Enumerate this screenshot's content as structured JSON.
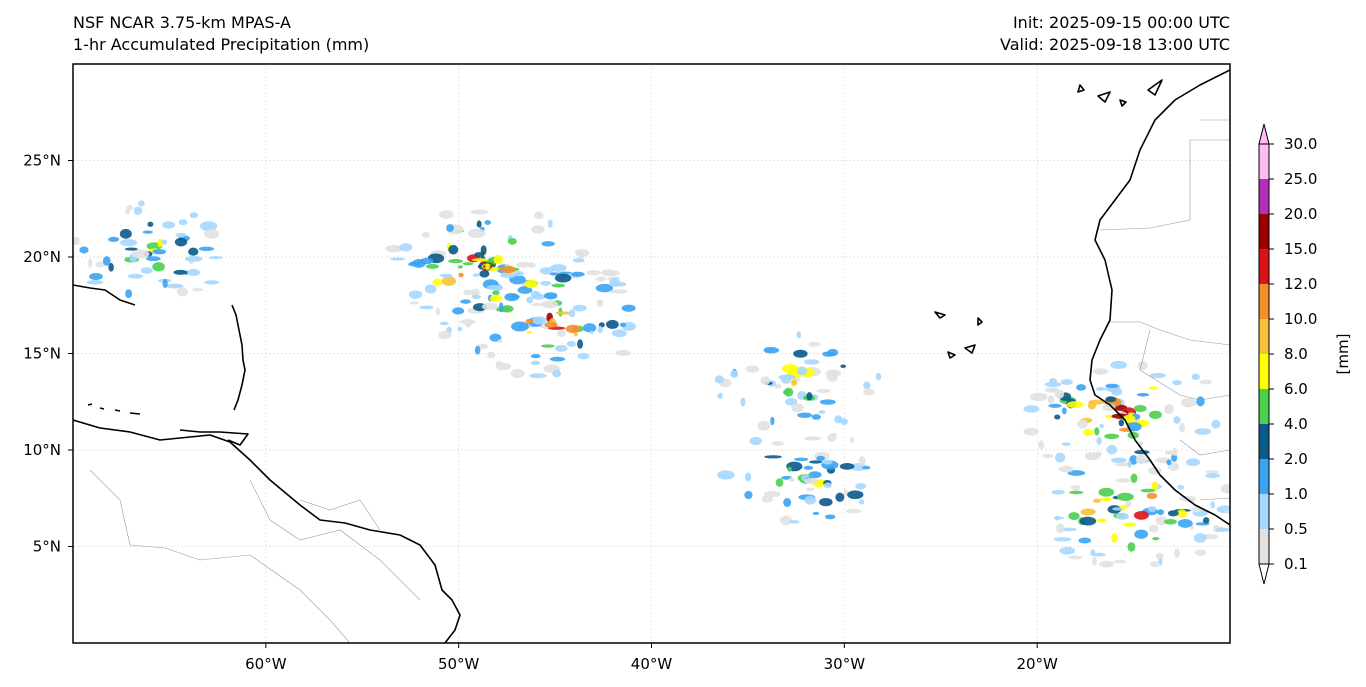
{
  "header": {
    "model": "NSF NCAR 3.75-km MPAS-A",
    "field": "1-hr Accumulated Precipitation (mm)",
    "init": "Init: 2025-09-15 00:00 UTC",
    "valid": "Valid: 2025-09-18 13:00 UTC"
  },
  "map": {
    "extent": {
      "lon_min": -70,
      "lon_max": -10,
      "lat_min": 0,
      "lat_max": 30
    },
    "gridlines": true,
    "x_ticks": [
      {
        "lon": -60,
        "label": "60°W"
      },
      {
        "lon": -50,
        "label": "50°W"
      },
      {
        "lon": -40,
        "label": "40°W"
      },
      {
        "lon": -30,
        "label": "30°W"
      },
      {
        "lon": -20,
        "label": "20°W"
      }
    ],
    "y_ticks": [
      {
        "lat": 25,
        "label": "25°N"
      },
      {
        "lat": 20,
        "label": "20°N"
      },
      {
        "lat": 15,
        "label": "15°N"
      },
      {
        "lat": 10,
        "label": "10°N"
      },
      {
        "lat": 5,
        "label": "5°N"
      }
    ]
  },
  "colorbar": {
    "unit_label": "[mm]",
    "extend": "both",
    "levels": [
      "0.1",
      "0.5",
      "1.0",
      "2.0",
      "4.0",
      "6.0",
      "8.0",
      "10.0",
      "12.0",
      "15.0",
      "20.0",
      "25.0",
      "30.0"
    ],
    "colors": [
      "#e1e1e1",
      "#a6d7ff",
      "#3aa3f2",
      "#0a5a8a",
      "#49d04d",
      "#ffff00",
      "#f7c23a",
      "#f3902b",
      "#d91418",
      "#9c0000",
      "#b52ebd",
      "#ffbcf2"
    ],
    "under_color": "#ffffff",
    "over_color": "#ffbcf2"
  },
  "precip_systems": [
    {
      "name": "hurricane-spiral",
      "lon": -45.5,
      "lat": 16.8,
      "intensity": "high"
    },
    {
      "name": "spiral-band-north",
      "lon": -48.5,
      "lat": 19.5,
      "intensity": "high"
    },
    {
      "name": "greater-antilles",
      "lon": -66,
      "lat": 20.3,
      "intensity": "moderate"
    },
    {
      "name": "central-atlantic-cluster",
      "lon": -32.5,
      "lat": 13.5,
      "intensity": "moderate"
    },
    {
      "name": "itcz-band",
      "lon": -32,
      "lat": 8.5,
      "intensity": "moderate"
    },
    {
      "name": "west-africa-coast",
      "lon": -15.5,
      "lat": 11.8,
      "intensity": "high"
    },
    {
      "name": "gulf-of-guinea-band",
      "lon": -15,
      "lat": 7,
      "intensity": "high"
    }
  ]
}
